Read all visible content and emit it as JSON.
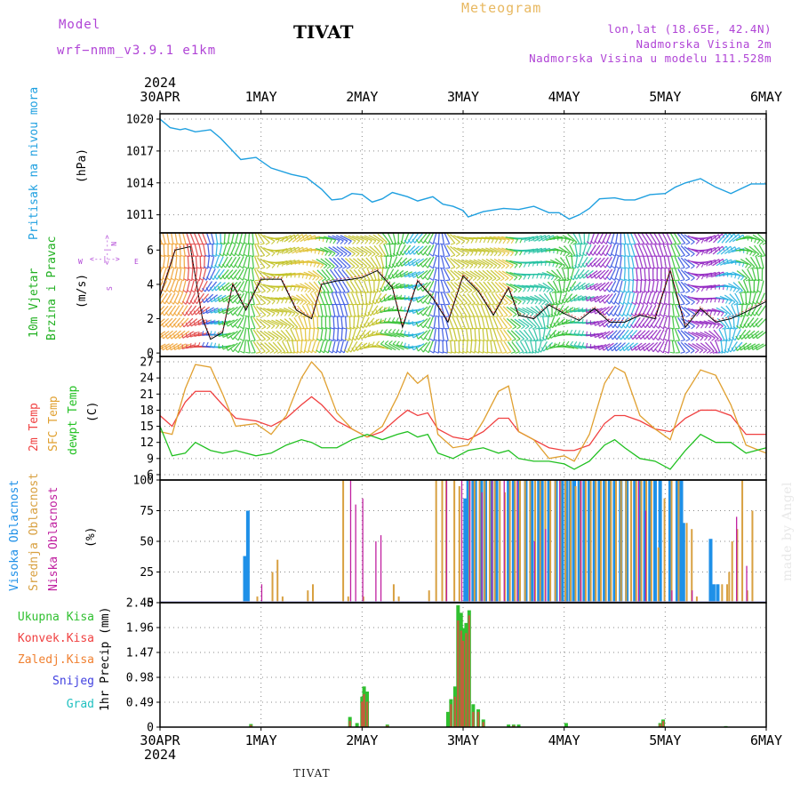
{
  "header": {
    "model_label": "Model",
    "model_name": "wrf−nmm_v3.9.1  e1km",
    "station": "TIVAT",
    "meteogram": "Meteogram",
    "coords": "lon,lat (18.65E, 42.4N)",
    "elevation": "Nadmorska Visina 2m",
    "model_elevation": "Nadmorska Visina u modelu 111.528m"
  },
  "footer": {
    "station": "TIVAT"
  },
  "watermark": "made by Angel",
  "colors": {
    "pressure": "#1fa0e0",
    "temp2m": "#f04040",
    "sfc": "#e0a030",
    "dewpt": "#20c020",
    "cloud_high": "#1e90e8",
    "cloud_mid": "#d8a040",
    "cloud_low": "#c020a0",
    "precip_total": "#30c030",
    "precip_conv": "#f04040",
    "precip_frz": "#f08030",
    "snow": "#4040e0",
    "hail": "#20c0c0"
  },
  "time_axis": {
    "year_label": "2024",
    "ticks": [
      "30APR",
      "1MAY",
      "2MAY",
      "3MAY",
      "4MAY",
      "5MAY",
      "6MAY"
    ]
  },
  "chart_data": [
    {
      "type": "line",
      "title": "Pritisak na nivou mora",
      "ylabel": "(hPa)",
      "yticks": [
        "1020",
        "1017",
        "1014",
        "1011"
      ],
      "ylim": [
        1009.3,
        1020.5
      ],
      "x": [
        0.0,
        0.1,
        0.2,
        0.25,
        0.35,
        0.5,
        0.6,
        0.8,
        0.95,
        1.1,
        1.3,
        1.45,
        1.6,
        1.7,
        1.8,
        1.9,
        2.0,
        2.1,
        2.2,
        2.3,
        2.45,
        2.55,
        2.7,
        2.8,
        2.9,
        3.0,
        3.05,
        3.2,
        3.4,
        3.55,
        3.7,
        3.85,
        3.95,
        4.05,
        4.15,
        4.25,
        4.35,
        4.5,
        4.6,
        4.7,
        4.85,
        5.0,
        5.1,
        5.2,
        5.35,
        5.5,
        5.65,
        5.85,
        6.0
      ],
      "series": [
        {
          "values": [
            1020.0,
            1019.2,
            1019.0,
            1019.1,
            1018.8,
            1019.0,
            1018.2,
            1016.2,
            1016.4,
            1015.4,
            1014.8,
            1014.5,
            1013.4,
            1012.4,
            1012.5,
            1013.0,
            1012.9,
            1012.2,
            1012.5,
            1013.1,
            1012.7,
            1012.3,
            1012.7,
            1012.0,
            1011.8,
            1011.4,
            1010.8,
            1011.3,
            1011.6,
            1011.5,
            1011.8,
            1011.2,
            1011.2,
            1010.6,
            1011.0,
            1011.6,
            1012.5,
            1012.6,
            1012.4,
            1012.4,
            1012.9,
            1013.0,
            1013.6,
            1014.0,
            1014.4,
            1013.6,
            1013.0,
            1013.9,
            1013.9
          ]
        }
      ]
    },
    {
      "type": "line",
      "title": "10m Vjetar Brzina i Pravac",
      "ylabel": "(m/s)",
      "direction_legend": [
        "W",
        "E",
        "N",
        "S"
      ],
      "yticks": [
        "0",
        "2",
        "4",
        "6"
      ],
      "ylim": [
        -0.2,
        7.0
      ],
      "x": [
        0.0,
        0.15,
        0.3,
        0.42,
        0.5,
        0.62,
        0.72,
        0.85,
        1.0,
        1.2,
        1.35,
        1.5,
        1.6,
        1.75,
        1.9,
        2.0,
        2.15,
        2.3,
        2.4,
        2.55,
        2.7,
        2.85,
        3.0,
        3.15,
        3.3,
        3.45,
        3.55,
        3.7,
        3.85,
        4.0,
        4.15,
        4.3,
        4.45,
        4.6,
        4.75,
        4.9,
        5.05,
        5.2,
        5.35,
        5.5,
        5.65,
        5.8,
        6.0
      ],
      "series": [
        {
          "values": [
            3.3,
            6.0,
            6.2,
            2.0,
            0.8,
            1.2,
            4.0,
            2.5,
            4.3,
            4.3,
            2.5,
            2.0,
            4.0,
            4.2,
            4.3,
            4.4,
            4.8,
            3.8,
            1.5,
            4.2,
            3.2,
            1.8,
            4.5,
            3.6,
            2.2,
            3.8,
            2.2,
            2.0,
            2.8,
            2.3,
            1.9,
            2.6,
            1.8,
            1.8,
            2.2,
            2.0,
            4.8,
            1.5,
            2.6,
            1.8,
            2.0,
            2.4,
            3.0
          ]
        }
      ]
    },
    {
      "type": "line",
      "title": "2m Temp / SFC Temp / dewpt Temp",
      "ylabel": "(C)",
      "yticks": [
        "6",
        "9",
        "12",
        "15",
        "18",
        "21",
        "24",
        "27"
      ],
      "ylim": [
        5,
        28
      ],
      "x": [
        0.0,
        0.12,
        0.25,
        0.35,
        0.5,
        0.62,
        0.75,
        0.95,
        1.1,
        1.25,
        1.4,
        1.5,
        1.6,
        1.75,
        1.9,
        2.05,
        2.2,
        2.35,
        2.45,
        2.55,
        2.65,
        2.75,
        2.9,
        3.05,
        3.2,
        3.35,
        3.45,
        3.55,
        3.7,
        3.85,
        4.0,
        4.1,
        4.25,
        4.4,
        4.5,
        4.6,
        4.75,
        4.9,
        5.05,
        5.2,
        5.35,
        5.5,
        5.65,
        5.8,
        6.0
      ],
      "series": [
        {
          "name": "2m Temp",
          "values": [
            17.0,
            15.0,
            19.5,
            21.5,
            21.5,
            19.0,
            16.5,
            16.0,
            15.0,
            16.5,
            19.0,
            20.5,
            19.0,
            16.0,
            14.5,
            13.0,
            14.0,
            16.5,
            18.0,
            17.0,
            17.5,
            14.5,
            13.0,
            12.5,
            14.0,
            16.5,
            16.5,
            14.0,
            12.5,
            11.0,
            10.5,
            10.5,
            11.5,
            15.5,
            17.0,
            17.0,
            16.0,
            14.5,
            14.0,
            16.5,
            18.0,
            18.0,
            17.0,
            13.5,
            13.5
          ]
        },
        {
          "name": "SFC Temp",
          "values": [
            14.0,
            13.5,
            22.0,
            26.5,
            26.0,
            21.0,
            15.0,
            15.5,
            13.5,
            17.0,
            24.0,
            27.0,
            25.0,
            17.5,
            14.5,
            13.0,
            15.0,
            20.5,
            25.0,
            23.0,
            24.5,
            13.5,
            11.0,
            11.5,
            16.0,
            21.5,
            22.5,
            14.0,
            12.5,
            9.0,
            9.5,
            8.5,
            13.5,
            23.0,
            26.0,
            25.0,
            17.0,
            14.5,
            12.5,
            21.0,
            25.5,
            24.5,
            19.0,
            11.5,
            10.0
          ]
        },
        {
          "name": "dewpt Temp",
          "values": [
            15.0,
            9.5,
            10.0,
            12.0,
            10.5,
            10.0,
            10.5,
            9.5,
            10.0,
            11.5,
            12.5,
            12.0,
            11.0,
            11.0,
            12.5,
            13.5,
            12.5,
            13.5,
            14.0,
            13.0,
            13.5,
            10.0,
            9.0,
            10.5,
            11.0,
            10.0,
            10.5,
            9.0,
            8.5,
            8.5,
            8.0,
            7.0,
            8.5,
            11.5,
            12.5,
            11.0,
            9.0,
            8.5,
            7.0,
            10.5,
            13.5,
            12.0,
            12.0,
            10.0,
            11.0
          ]
        }
      ]
    },
    {
      "type": "bar",
      "title": "Visoka Oblacnost / Srednja Oblacnost / Niska Oblacnost",
      "ylabel": "(%)",
      "yticks": [
        "0",
        "25",
        "50",
        "75",
        "100"
      ],
      "ylim": [
        0,
        100
      ],
      "series": [
        {
          "name": "Visoka Oblacnost",
          "x": [
            0.84,
            0.87,
            3.02,
            3.05,
            3.1,
            3.12,
            3.18,
            3.22,
            3.28,
            3.33,
            3.45,
            3.5,
            3.55,
            3.62,
            3.68,
            3.75,
            3.78,
            3.85,
            3.92,
            3.98,
            4.02,
            4.06,
            4.1,
            4.15,
            4.2,
            4.25,
            4.3,
            4.35,
            4.4,
            4.45,
            4.5,
            4.56,
            4.62,
            4.7,
            4.75,
            4.8,
            4.85,
            4.9,
            4.95,
            5.05,
            5.12,
            5.16,
            5.18,
            5.45,
            5.48,
            5.52
          ],
          "values": [
            38,
            75,
            85,
            100,
            100,
            100,
            100,
            100,
            100,
            100,
            100,
            100,
            100,
            100,
            100,
            100,
            100,
            100,
            100,
            100,
            100,
            100,
            100,
            100,
            100,
            100,
            100,
            100,
            100,
            100,
            100,
            100,
            100,
            100,
            100,
            100,
            100,
            100,
            100,
            100,
            100,
            100,
            65,
            52,
            15,
            15
          ]
        },
        {
          "name": "Srednja Oblacnost",
          "x": [
            0.95,
            1.1,
            1.15,
            1.2,
            1.45,
            1.5,
            1.8,
            1.85,
            2.0,
            2.3,
            2.35,
            2.65,
            2.72,
            2.78,
            2.82,
            2.9,
            2.95,
            3.05,
            3.1,
            3.15,
            3.2,
            3.25,
            3.3,
            3.35,
            3.4,
            3.45,
            3.5,
            3.55,
            3.6,
            3.65,
            3.7,
            3.75,
            3.8,
            3.85,
            3.9,
            3.95,
            4.0,
            4.05,
            4.1,
            4.15,
            4.2,
            4.25,
            4.3,
            4.35,
            4.4,
            4.45,
            4.5,
            4.55,
            4.6,
            4.65,
            4.7,
            4.75,
            4.8,
            4.85,
            4.92,
            4.98,
            5.05,
            5.12,
            5.2,
            5.25,
            5.3,
            5.55,
            5.6,
            5.62,
            5.65,
            5.7,
            5.75,
            5.8,
            5.85
          ],
          "values": [
            5,
            25,
            35,
            5,
            10,
            15,
            100,
            5,
            5,
            15,
            5,
            10,
            100,
            100,
            100,
            100,
            95,
            100,
            100,
            100,
            100,
            100,
            100,
            100,
            90,
            100,
            100,
            100,
            100,
            100,
            100,
            100,
            100,
            100,
            100,
            100,
            100,
            100,
            95,
            100,
            100,
            100,
            100,
            100,
            100,
            100,
            100,
            100,
            100,
            100,
            100,
            100,
            100,
            100,
            45,
            85,
            100,
            100,
            65,
            60,
            5,
            15,
            15,
            25,
            50,
            60,
            100,
            10,
            75
          ]
        },
        {
          "name": "Niska Oblacnost",
          "x": [
            1.02,
            1.9,
            1.95,
            2.02,
            2.15,
            2.2,
            2.85,
            3.0,
            3.08,
            3.2,
            3.3,
            3.42,
            3.55,
            3.72,
            3.83,
            3.97,
            4.18,
            4.75,
            4.82,
            5.08,
            5.28,
            5.72,
            5.82
          ],
          "values": [
            15,
            100,
            80,
            85,
            50,
            55,
            100,
            100,
            100,
            90,
            100,
            100,
            100,
            50,
            60,
            100,
            100,
            100,
            75,
            10,
            10,
            70,
            30
          ]
        }
      ]
    },
    {
      "type": "bar",
      "title": "Ukupna Kisa / Konvek.Kisa / Zaledj.Kisa / Snijeg / Grad",
      "ylabel": "1hr Precip (mm)",
      "yticks": [
        "0",
        "0.49",
        "0.98",
        "1.47",
        "1.96",
        "2.45"
      ],
      "ylim": [
        0,
        2.45
      ],
      "series": [
        {
          "name": "Ukupna Kisa",
          "x": [
            0.9,
            1.88,
            1.95,
            2.0,
            2.02,
            2.05,
            2.25,
            2.85,
            2.88,
            2.92,
            2.95,
            2.98,
            3.0,
            3.03,
            3.06,
            3.1,
            3.15,
            3.2,
            3.45,
            3.5,
            3.55,
            4.02,
            4.95,
            4.98,
            5.6
          ],
          "values": [
            0.06,
            0.2,
            0.08,
            0.6,
            0.8,
            0.7,
            0.05,
            0.3,
            0.55,
            0.8,
            2.4,
            2.25,
            1.95,
            2.05,
            2.3,
            0.45,
            0.35,
            0.15,
            0.05,
            0.05,
            0.05,
            0.08,
            0.08,
            0.15,
            0.02
          ]
        },
        {
          "name": "Konvek.Kisa",
          "x": [
            0.9,
            1.88,
            2.0,
            2.02,
            2.05,
            2.25,
            2.88,
            2.92,
            2.95,
            2.98,
            3.0,
            3.03,
            3.06,
            3.1,
            3.15,
            3.2,
            3.5,
            4.95,
            4.98
          ],
          "values": [
            0.04,
            0.12,
            0.5,
            0.65,
            0.5,
            0.03,
            0.45,
            0.6,
            2.1,
            1.9,
            1.7,
            1.85,
            2.2,
            0.3,
            0.3,
            0.1,
            0.03,
            0.06,
            0.12
          ]
        }
      ]
    }
  ]
}
